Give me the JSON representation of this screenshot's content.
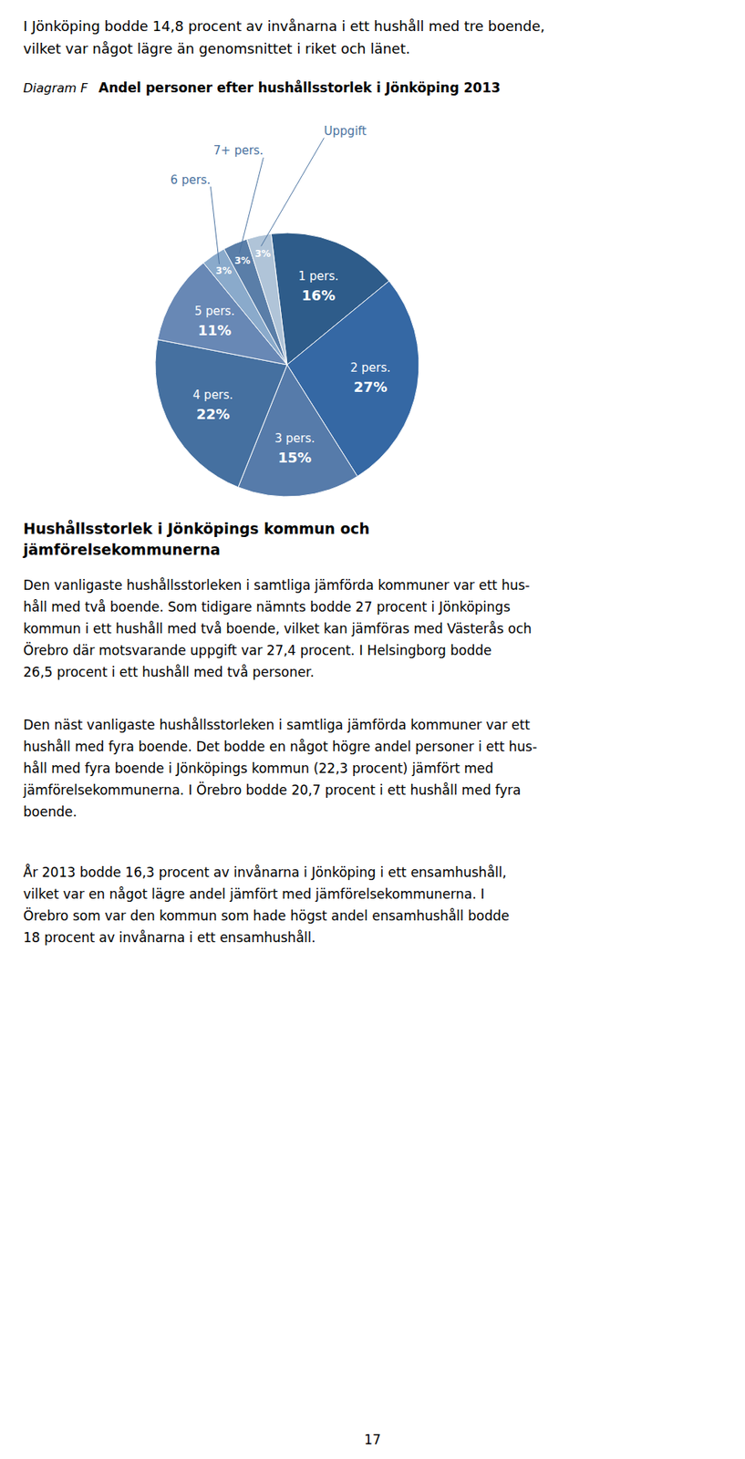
{
  "page": {
    "title_lines": [
      "I Jönköping bodde 14,8 procent av invånarna i ett hushåll med tre boende,",
      "vilket var något lägre än genomsnittet i riket och länet."
    ],
    "diagram_label": "Diagram F",
    "section_heading_lines": [
      "Hushållsstorlek i Jönköpings kommun och",
      "jämförelsekommunerna"
    ],
    "paragraphs": [
      [
        "Den vanligaste hushållsstorleken i samtliga jämförda kommuner var ett hus-",
        "håll med två boende. Som tidigare nämnts bodde 27 procent i Jönköpings",
        "kommun i ett hushåll med två boende, vilket kan jämföras med Västerås och",
        "Örebro där motsvarande uppgift var 27,4 procent. I Helsingborg bodde",
        "26,5 procent i ett hushåll med två personer."
      ],
      [
        "Den näst vanligaste hushållsstorleken i samtliga jämförda kommuner var ett",
        "hushåll med fyra boende. Det bodde en något högre andel personer i ett hus-",
        "håll med fyra boende i Jönköpings kommun (22,3 procent) jämfört med",
        "jämförelsekommunerna. I Örebro bodde 20,7 procent i ett hushåll med fyra",
        "boende."
      ],
      [
        "År 2013 bodde 16,3 procent av invånarna i Jönköping i ett ensamhushåll,",
        "vilket var en något lägre andel jämfört med jämförelsekommunerna. I",
        "Örebro som var den kommun som hade högst andel ensamhushåll bodde",
        "18 procent av invånarna i ett ensamhushåll."
      ]
    ],
    "page_number": "17"
  },
  "chart_data": {
    "type": "pie",
    "title": "Andel personer efter hushållsstorlek i Jönköping 2013",
    "categories": [
      "1 pers.",
      "2 pers.",
      "3 pers.",
      "4 pers.",
      "5 pers.",
      "6 pers.",
      "7+ pers.",
      "Uppgift"
    ],
    "values": [
      16,
      27,
      15,
      22,
      11,
      3,
      3,
      3
    ],
    "value_labels": [
      "16%",
      "27%",
      "15%",
      "22%",
      "11%",
      "3%",
      "3%",
      "3%"
    ],
    "colors": [
      "#2E5C8A",
      "#3568A4",
      "#567BAA",
      "#4570A0",
      "#6888B5",
      "#8AAACB",
      "#5A7EA8",
      "#B0C4D8"
    ],
    "data_labels": true
  }
}
